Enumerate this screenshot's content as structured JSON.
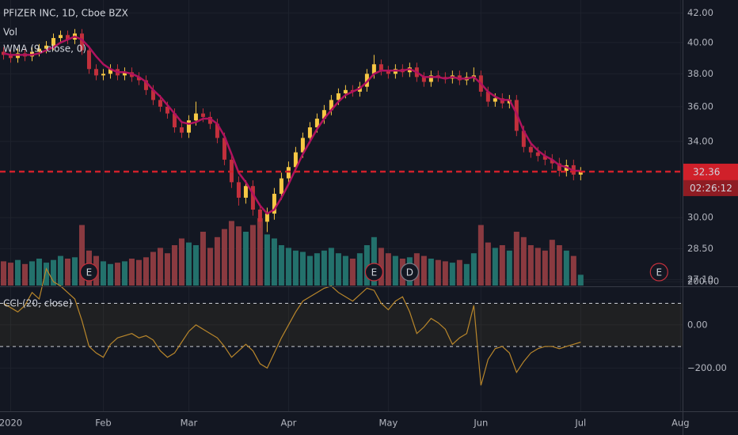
{
  "chart_data": [
    {
      "type": "candlestick",
      "title": "PFIZER INC, 1D, Cboe BZX",
      "open": [
        39.4,
        39.2,
        39.0,
        39.3,
        39.1,
        39.4,
        39.6,
        39.8,
        40.3,
        40.5,
        40.2,
        40.6,
        39.5,
        38.3,
        37.9,
        38.0,
        38.3,
        37.9,
        38.1,
        37.8,
        37.6,
        37.0,
        36.4,
        36.0,
        35.6,
        34.8,
        34.5,
        35.2,
        35.6,
        35.4,
        35.0,
        34.2,
        33.0,
        31.8,
        31.0,
        31.6,
        30.4,
        29.8,
        30.2,
        31.2,
        32.0,
        32.6,
        33.4,
        34.2,
        34.8,
        35.3,
        35.8,
        36.4,
        36.8,
        37.0,
        36.9,
        37.2,
        38.0,
        38.6,
        38.2,
        38.0,
        38.3,
        38.1,
        38.4,
        37.8,
        37.5,
        37.9,
        37.8,
        37.7,
        37.9,
        37.6,
        37.8,
        37.9,
        36.9,
        36.3,
        36.5,
        36.2,
        36.4,
        34.6,
        33.7,
        33.4,
        33.2,
        33.0,
        32.8,
        32.4,
        32.7,
        32.2
      ],
      "high": [
        39.7,
        39.5,
        39.6,
        39.6,
        39.7,
        39.9,
        40.1,
        40.6,
        40.8,
        40.8,
        40.9,
        40.9,
        39.8,
        38.6,
        38.3,
        38.6,
        38.6,
        38.4,
        38.4,
        38.1,
        37.9,
        37.3,
        36.7,
        36.3,
        35.9,
        35.1,
        35.5,
        36.3,
        35.9,
        35.7,
        35.3,
        34.5,
        33.3,
        32.1,
        31.9,
        31.9,
        30.7,
        30.5,
        31.5,
        32.3,
        32.9,
        33.7,
        34.5,
        35.1,
        35.6,
        36.1,
        36.7,
        37.1,
        37.3,
        37.3,
        37.5,
        38.3,
        39.2,
        38.9,
        38.5,
        38.6,
        38.6,
        38.7,
        38.7,
        38.1,
        38.2,
        38.2,
        38.1,
        38.2,
        38.2,
        38.1,
        38.4,
        38.2,
        37.2,
        36.8,
        36.8,
        36.7,
        36.7,
        34.9,
        34.0,
        33.7,
        33.5,
        33.3,
        33.1,
        33.0,
        33.0,
        32.6
      ],
      "low": [
        38.9,
        38.7,
        38.7,
        38.8,
        38.8,
        39.1,
        39.3,
        39.5,
        40.0,
        39.9,
        39.9,
        39.2,
        38.0,
        37.6,
        37.6,
        37.7,
        37.6,
        37.6,
        37.5,
        37.3,
        36.7,
        36.1,
        35.7,
        35.3,
        34.5,
        34.2,
        34.2,
        34.9,
        35.1,
        34.7,
        33.9,
        32.7,
        31.5,
        30.6,
        30.7,
        30.1,
        29.5,
        29.3,
        29.9,
        30.9,
        31.7,
        32.3,
        33.1,
        33.9,
        34.5,
        35.0,
        35.5,
        36.1,
        36.5,
        36.6,
        36.6,
        36.9,
        37.7,
        37.9,
        37.7,
        37.7,
        37.8,
        37.8,
        37.5,
        37.2,
        37.2,
        37.5,
        37.4,
        37.4,
        37.3,
        37.3,
        37.5,
        36.6,
        36.0,
        36.0,
        35.9,
        35.9,
        34.3,
        33.4,
        33.1,
        32.9,
        32.7,
        32.5,
        32.1,
        32.1,
        31.9,
        31.9
      ],
      "close": [
        39.2,
        39.0,
        39.3,
        39.1,
        39.4,
        39.6,
        39.8,
        40.3,
        40.5,
        40.2,
        40.6,
        39.5,
        38.3,
        37.9,
        38.0,
        38.3,
        37.9,
        38.1,
        37.8,
        37.6,
        37.0,
        36.4,
        36.0,
        35.6,
        34.8,
        34.5,
        35.2,
        35.6,
        35.4,
        35.0,
        34.2,
        33.0,
        31.8,
        31.0,
        31.6,
        30.4,
        29.8,
        30.2,
        31.2,
        32.0,
        32.6,
        33.4,
        34.2,
        34.8,
        35.3,
        35.8,
        36.4,
        36.8,
        37.0,
        36.9,
        37.2,
        38.0,
        38.6,
        38.2,
        38.0,
        38.3,
        38.1,
        38.4,
        37.8,
        37.5,
        37.9,
        37.8,
        37.7,
        37.9,
        37.6,
        37.8,
        37.9,
        36.9,
        36.3,
        36.5,
        36.2,
        36.4,
        34.6,
        33.7,
        33.4,
        33.2,
        33.0,
        32.8,
        32.4,
        32.7,
        32.2,
        32.36
      ],
      "up_color": "#f7c844",
      "down_color": "#c2303c",
      "ylim": [
        26.8,
        42.9
      ],
      "log_scale": true,
      "yticks": [
        {
          "value": 42,
          "label": "42.00"
        },
        {
          "value": 40,
          "label": "40.00"
        },
        {
          "value": 38,
          "label": "38.00"
        },
        {
          "value": 36,
          "label": "36.00"
        },
        {
          "value": 34,
          "label": "34.00"
        },
        {
          "value": 30,
          "label": "30.00"
        },
        {
          "value": 28.5,
          "label": "28.50"
        },
        {
          "value": 27.1,
          "label": "27.10"
        }
      ],
      "volume_label": "Vol",
      "volume": [
        18,
        17,
        19,
        16,
        18,
        20,
        17,
        19,
        22,
        20,
        21,
        45,
        26,
        22,
        18,
        16,
        17,
        18,
        20,
        19,
        21,
        25,
        28,
        24,
        30,
        35,
        32,
        30,
        40,
        28,
        36,
        42,
        48,
        44,
        40,
        45,
        50,
        38,
        35,
        30,
        28,
        26,
        25,
        22,
        24,
        26,
        28,
        24,
        22,
        20,
        24,
        30,
        36,
        28,
        24,
        22,
        20,
        21,
        24,
        22,
        20,
        19,
        18,
        17,
        19,
        16,
        24,
        45,
        32,
        28,
        30,
        26,
        40,
        36,
        30,
        28,
        26,
        34,
        30,
        26,
        22,
        8
      ],
      "volume_up_color": "#23716c",
      "volume_down_color": "#8a3a40",
      "overlay": {
        "name": "WMA (9, close, 0)",
        "color": "#b0125e",
        "values": [
          39.3,
          39.2,
          39.2,
          39.2,
          39.2,
          39.3,
          39.5,
          39.7,
          40.0,
          40.2,
          40.4,
          40.2,
          39.7,
          39.1,
          38.6,
          38.3,
          38.1,
          38.1,
          38.0,
          37.8,
          37.5,
          37.0,
          36.6,
          36.1,
          35.6,
          35.1,
          35.0,
          35.1,
          35.3,
          35.3,
          35.0,
          34.3,
          33.3,
          32.3,
          31.8,
          31.2,
          30.6,
          30.2,
          30.4,
          31.0,
          31.7,
          32.5,
          33.3,
          34.0,
          34.7,
          35.3,
          35.8,
          36.3,
          36.7,
          36.9,
          37.1,
          37.5,
          38.0,
          38.2,
          38.2,
          38.2,
          38.2,
          38.3,
          38.1,
          37.8,
          37.8,
          37.8,
          37.7,
          37.8,
          37.7,
          37.7,
          37.8,
          37.4,
          36.9,
          36.6,
          36.4,
          36.4,
          35.6,
          34.6,
          33.9,
          33.5,
          33.2,
          33.0,
          32.7,
          32.6,
          32.4,
          32.4
        ]
      },
      "last_price": {
        "value": 32.36,
        "label": "32.36"
      },
      "last_price_color": "#d0202a",
      "countdown": "02:26:12",
      "events": [
        {
          "label": "E",
          "x": 12,
          "color": "#c2303c"
        },
        {
          "label": "E",
          "x": 52,
          "color": "#c2303c"
        },
        {
          "label": "D",
          "x": 57,
          "color": "#787b86"
        },
        {
          "label": "E",
          "x": 92,
          "color": "#c2303c"
        }
      ],
      "xlim": [
        -0.5,
        95.3
      ],
      "xticks": [
        {
          "value": 1,
          "label": "2020"
        },
        {
          "value": 14,
          "label": "Feb"
        },
        {
          "value": 26,
          "label": "Mar"
        },
        {
          "value": 40,
          "label": "Apr"
        },
        {
          "value": 54,
          "label": "May"
        },
        {
          "value": 67,
          "label": "Jun"
        },
        {
          "value": 81,
          "label": "Jul"
        },
        {
          "value": 95,
          "label": "Aug"
        }
      ]
    },
    {
      "type": "line",
      "title": "CCI (20, close)",
      "color": "#b8862b",
      "values": [
        100,
        80,
        60,
        90,
        150,
        120,
        260,
        200,
        180,
        150,
        120,
        20,
        -100,
        -130,
        -150,
        -90,
        -60,
        -50,
        -40,
        -60,
        -50,
        -70,
        -120,
        -150,
        -130,
        -80,
        -30,
        0,
        -20,
        -40,
        -60,
        -100,
        -150,
        -120,
        -90,
        -120,
        -180,
        -200,
        -130,
        -60,
        0,
        60,
        110,
        130,
        150,
        170,
        180,
        150,
        130,
        110,
        140,
        170,
        160,
        100,
        70,
        110,
        130,
        60,
        -40,
        -10,
        30,
        10,
        -20,
        -90,
        -60,
        -40,
        90,
        -280,
        -160,
        -110,
        -100,
        -130,
        -220,
        -170,
        -130,
        -110,
        -100,
        -100,
        -110,
        -100,
        -90,
        -80
      ],
      "ylim": [
        -400,
        175
      ],
      "yticks": [
        {
          "value": 200,
          "label": "200.00"
        },
        {
          "value": 0,
          "label": "0.00"
        },
        {
          "value": -200,
          "label": "−200.00"
        }
      ],
      "bands": [
        -100,
        100
      ]
    }
  ]
}
